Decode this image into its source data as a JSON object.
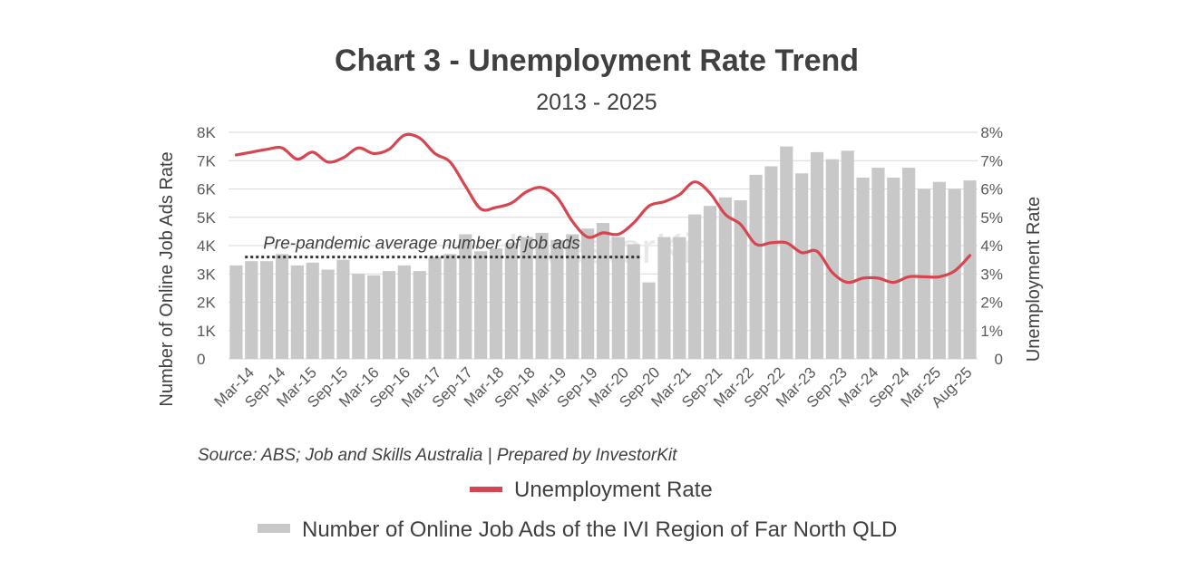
{
  "chart_data": {
    "type": "bar",
    "title": "Chart 3 - Unemployment Rate Trend",
    "subtitle": "2013 - 2025",
    "ylabel": "Number of Online Job Ads Rate",
    "y2label": "Unemployment Rate",
    "ylim": [
      0,
      8000
    ],
    "y2lim": [
      0,
      8
    ],
    "yticks": [
      "0",
      "1K",
      "2K",
      "3K",
      "4K",
      "5K",
      "6K",
      "7K",
      "8K"
    ],
    "y2ticks": [
      "0",
      "1%",
      "2%",
      "3%",
      "4%",
      "5%",
      "6%",
      "7%",
      "8%"
    ],
    "grid": true,
    "x_labels": [
      "Mar-14",
      "Sep-14",
      "Mar-15",
      "Sep-15",
      "Mar-16",
      "Sep-16",
      "Mar-17",
      "Sep-17",
      "Mar-18",
      "Sep-18",
      "Mar-19",
      "Sep-19",
      "Mar-20",
      "Sep-20",
      "Mar-21",
      "Sep-21",
      "Mar-22",
      "Sep-22",
      "Mar-23",
      "Sep-23",
      "Mar-24",
      "Sep-24",
      "Mar-25",
      "Aug-25"
    ],
    "series": [
      {
        "name": "Number of Online Job Ads of the IVI Region of Far North QLD",
        "type": "bar",
        "axis": "left",
        "color": "#c8c8c8",
        "values": [
          3300,
          3450,
          3450,
          3700,
          3300,
          3400,
          3150,
          3500,
          3000,
          2950,
          3100,
          3300,
          3100,
          3600,
          3700,
          4400,
          3800,
          3900,
          4100,
          4300,
          4450,
          4200,
          4400,
          4600,
          4800,
          4300,
          4050,
          2700,
          4300,
          4300,
          5100,
          5400,
          5700,
          5600,
          6500,
          6800,
          7500,
          6550,
          7300,
          7050,
          7350,
          6400,
          6750,
          6400,
          6750,
          6000,
          6250,
          6000,
          6300
        ]
      },
      {
        "name": "Unemployment Rate",
        "type": "line",
        "axis": "right",
        "color": "#d64550",
        "values": [
          7.2,
          7.3,
          7.4,
          7.45,
          7.05,
          7.3,
          6.95,
          7.1,
          7.45,
          7.25,
          7.4,
          7.9,
          7.8,
          7.25,
          6.95,
          6.1,
          5.3,
          5.35,
          5.5,
          5.9,
          6.05,
          5.7,
          4.85,
          4.3,
          4.45,
          4.4,
          4.8,
          5.4,
          5.55,
          5.8,
          6.25,
          5.85,
          5.1,
          4.75,
          4.05,
          4.1,
          4.1,
          3.75,
          3.8,
          3.05,
          2.7,
          2.85,
          2.85,
          2.7,
          2.9,
          2.9,
          2.9,
          3.1,
          3.65
        ]
      }
    ],
    "annotation": {
      "text": "Pre-pandemic average number of job ads",
      "value": 3500,
      "from_index": 1,
      "to_index": 26
    },
    "source": "Source: ABS; Job and Skills Australia | Prepared by InvestorKit",
    "watermark": "InvestorKit",
    "legend_position": "bottom"
  }
}
